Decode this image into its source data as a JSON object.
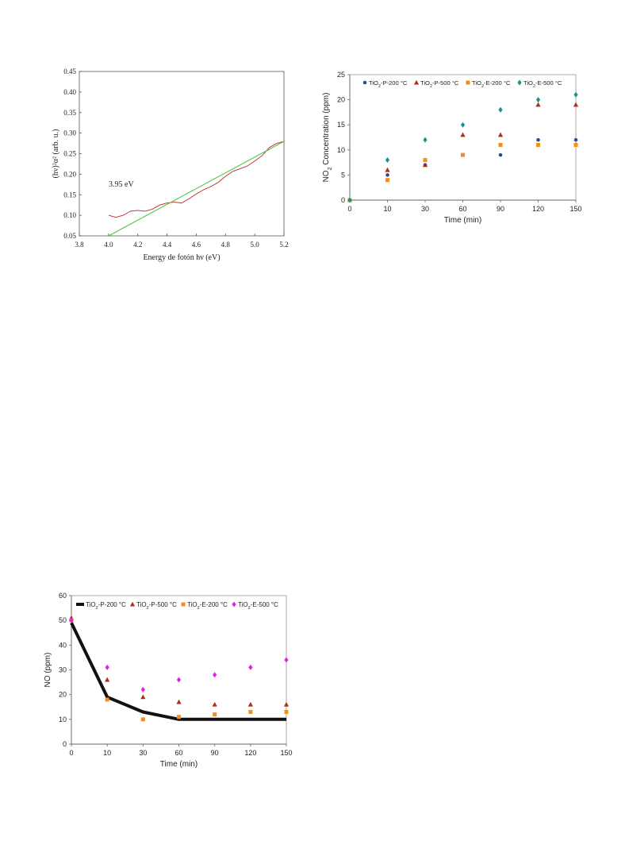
{
  "chart_data": [
    {
      "type": "line",
      "xlabel": "Energy de fotón hν  (eV)",
      "ylabel": "(hν)²α²  (arb. u.)",
      "annotation": "3.95 eV",
      "xlim": [
        3.8,
        5.2
      ],
      "ylim": [
        0.05,
        0.45
      ],
      "xticks": [
        "3.8",
        "4.0",
        "4.2",
        "4.4",
        "4.6",
        "4.8",
        "5.0",
        "5.2"
      ],
      "yticks": [
        "0.05",
        "0.10",
        "0.15",
        "0.20",
        "0.25",
        "0.30",
        "0.35",
        "0.40",
        "0.45"
      ],
      "grid": false,
      "series": [
        {
          "color": "#c0262d",
          "x": [
            4.0,
            4.05,
            4.1,
            4.15,
            4.2,
            4.25,
            4.3,
            4.35,
            4.4,
            4.45,
            4.5,
            4.55,
            4.6,
            4.65,
            4.7,
            4.75,
            4.8,
            4.85,
            4.9,
            4.95,
            5.0,
            5.05,
            5.1,
            5.15,
            5.2
          ],
          "y": [
            0.1,
            0.095,
            0.1,
            0.11,
            0.112,
            0.11,
            0.115,
            0.125,
            0.13,
            0.132,
            0.13,
            0.14,
            0.152,
            0.162,
            0.17,
            0.18,
            0.195,
            0.207,
            0.213,
            0.22,
            0.232,
            0.245,
            0.265,
            0.275,
            0.28
          ]
        },
        {
          "color": "#44c43c",
          "x": [
            4.0,
            5.2
          ],
          "y": [
            0.05,
            0.28
          ]
        }
      ]
    },
    {
      "type": "scatter",
      "xlabel": "Time (min)",
      "ylabel": "NO₂ Concentration (ppm)",
      "categories": [
        "0",
        "10",
        "30",
        "60",
        "90",
        "120",
        "150"
      ],
      "ylim": [
        0,
        25
      ],
      "yticks": [
        "0",
        "5",
        "10",
        "15",
        "20",
        "25"
      ],
      "grid": false,
      "legend": "top",
      "series": [
        {
          "name": "TiO₂-P-200 °C",
          "color": "#2e4b9b",
          "marker": "circle",
          "values": [
            0,
            5,
            7,
            9,
            9,
            12,
            12
          ]
        },
        {
          "name": "TiO₂-P-500 °C",
          "color": "#b22a1a",
          "marker": "triangle",
          "values": [
            0,
            6,
            7,
            13,
            13,
            19,
            19
          ]
        },
        {
          "name": "TiO₂-E-200 °C",
          "color": "#f28e1c",
          "marker": "square",
          "values": [
            0,
            4,
            8,
            9,
            11,
            11,
            11
          ]
        },
        {
          "name": "TiO₂-E-500 °C",
          "color": "#1e8f8c",
          "marker": "diamond",
          "values": [
            0,
            8,
            12,
            15,
            18,
            20,
            21
          ]
        }
      ]
    },
    {
      "type": "scatter",
      "xlabel": "Time (min)",
      "ylabel": "NO (ppm)",
      "categories": [
        "0",
        "10",
        "30",
        "60",
        "90",
        "120",
        "150"
      ],
      "ylim": [
        0,
        60
      ],
      "yticks": [
        "0",
        "10",
        "20",
        "30",
        "40",
        "50",
        "60"
      ],
      "grid": false,
      "legend": "top",
      "series": [
        {
          "name": "TiO₂-P-200 °C",
          "color": "#111111",
          "marker": "line",
          "values": [
            49,
            19,
            13,
            10,
            10,
            10,
            10
          ]
        },
        {
          "name": "TiO₂-P-500 °C",
          "color": "#b22a1a",
          "marker": "triangle",
          "values": [
            51,
            26,
            19,
            17,
            16,
            16,
            16
          ]
        },
        {
          "name": "TiO₂-E-200 °C",
          "color": "#f28e1c",
          "marker": "square",
          "values": [
            50,
            18,
            10,
            11,
            12,
            13,
            13
          ]
        },
        {
          "name": "TiO₂-E-500 °C",
          "color": "#e020e6",
          "marker": "diamond",
          "values": [
            50,
            31,
            22,
            26,
            28,
            31,
            34
          ]
        }
      ]
    }
  ]
}
